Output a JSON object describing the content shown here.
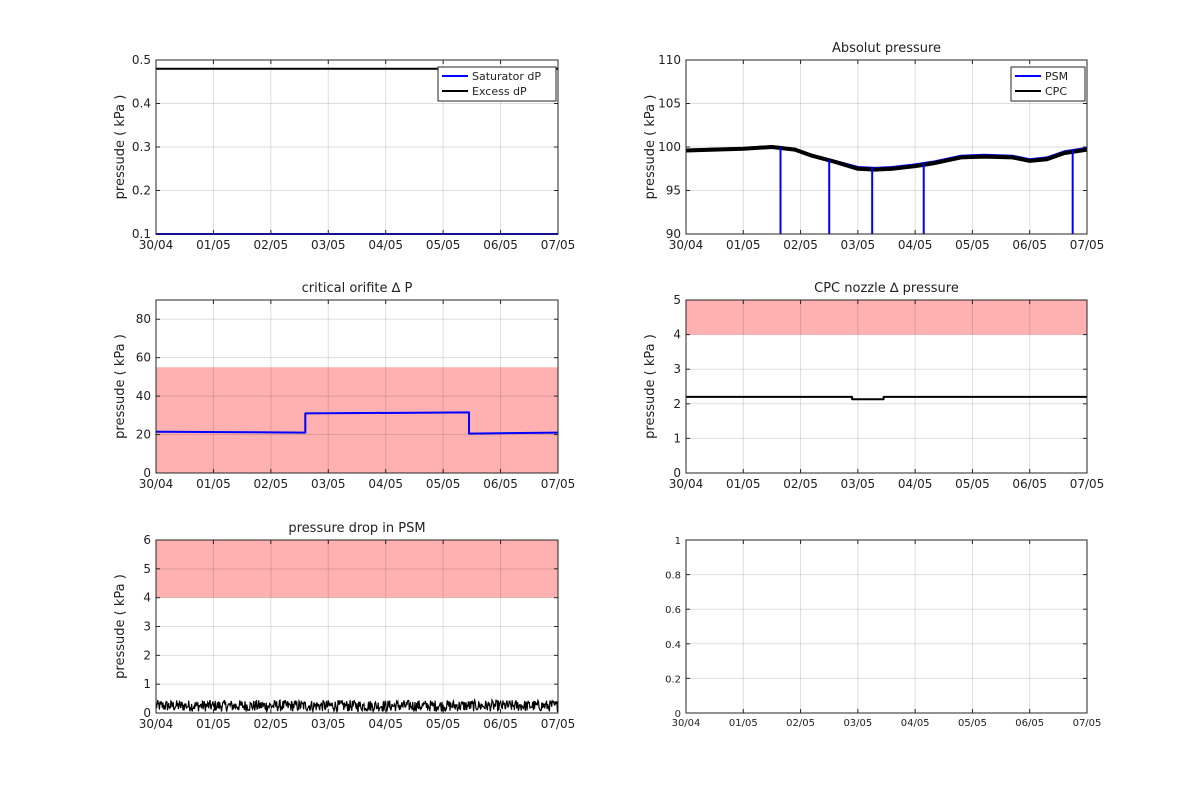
{
  "chart_data": [
    {
      "type": "line",
      "title": "",
      "ylabel": "pressude ( kPa )",
      "ylim": [
        0.1,
        0.5
      ],
      "yticks": [
        "0.1",
        "0.2",
        "0.3",
        "0.4",
        "0.5"
      ],
      "xticks": [
        "30/04",
        "01/05",
        "02/05",
        "03/05",
        "04/05",
        "05/05",
        "06/05",
        "07/05"
      ],
      "grid": true,
      "legend": "top-right",
      "series": [
        {
          "name": "Saturator dP",
          "color": "#0000ff",
          "x": [
            0,
            7
          ],
          "y": [
            0.1,
            0.1
          ]
        },
        {
          "name": "Excess dP",
          "color": "#000000",
          "x": [
            0,
            7
          ],
          "y": [
            0.48,
            0.48
          ]
        }
      ]
    },
    {
      "type": "line",
      "title": "Absolut pressure",
      "ylabel": "pressude ( kPa )",
      "ylim": [
        90,
        110
      ],
      "yticks": [
        "90",
        "95",
        "100",
        "105",
        "110"
      ],
      "xticks": [
        "30/04",
        "01/05",
        "02/05",
        "03/05",
        "04/05",
        "05/05",
        "06/05",
        "07/05"
      ],
      "grid": true,
      "legend": "top-right",
      "series": [
        {
          "name": "PSM",
          "color": "#0000ff",
          "x": [
            0,
            1,
            1.5,
            1.9,
            2.2,
            2.6,
            3.0,
            3.3,
            3.6,
            4.0,
            4.3,
            4.8,
            5.2,
            5.7,
            6.0,
            6.3,
            6.6,
            7.0
          ],
          "y": [
            99.7,
            99.9,
            100.1,
            99.8,
            99.1,
            98.4,
            97.7,
            97.6,
            97.7,
            98.0,
            98.3,
            99.0,
            99.1,
            99.0,
            98.6,
            98.8,
            99.5,
            99.9
          ]
        },
        {
          "name": "CPC",
          "color": "#000000",
          "x": [
            0,
            1,
            1.5,
            1.9,
            2.2,
            2.6,
            3.0,
            3.3,
            3.6,
            4.0,
            4.3,
            4.8,
            5.2,
            5.7,
            6.0,
            6.3,
            6.6,
            7.0
          ],
          "y": [
            99.6,
            99.8,
            100.0,
            99.7,
            99.0,
            98.3,
            97.5,
            97.4,
            97.5,
            97.8,
            98.1,
            98.8,
            98.9,
            98.8,
            98.4,
            98.6,
            99.3,
            99.7
          ]
        }
      ],
      "spikes": [
        {
          "x": 1.65,
          "y": 90
        },
        {
          "x": 2.5,
          "y": 90
        },
        {
          "x": 3.25,
          "y": 90
        },
        {
          "x": 4.15,
          "y": 90
        },
        {
          "x": 6.75,
          "y": 90
        }
      ]
    },
    {
      "type": "line",
      "title": "critical orifite ∆ P",
      "ylabel": "pressude ( kPa )",
      "ylim": [
        0,
        90
      ],
      "yticks": [
        "0",
        "20",
        "40",
        "60",
        "80"
      ],
      "ytick_values": [
        0,
        20,
        40,
        60,
        80
      ],
      "xticks": [
        "30/04",
        "01/05",
        "02/05",
        "03/05",
        "04/05",
        "05/05",
        "06/05",
        "07/05"
      ],
      "grid": true,
      "band": [
        0,
        55
      ],
      "series": [
        {
          "name": "",
          "color": "#0000ff",
          "x": [
            0,
            2.6,
            2.6,
            5.45,
            5.45,
            7.0
          ],
          "y": [
            21.5,
            21,
            31,
            31.5,
            20.5,
            21
          ]
        }
      ]
    },
    {
      "type": "line",
      "title": "CPC nozzle ∆ pressure",
      "ylabel": "pressude ( kPa )",
      "ylim": [
        0,
        5
      ],
      "yticks": [
        "0",
        "1",
        "2",
        "3",
        "4",
        "5"
      ],
      "xticks": [
        "30/04",
        "01/05",
        "02/05",
        "03/05",
        "04/05",
        "05/05",
        "06/05",
        "07/05"
      ],
      "grid": true,
      "band": [
        4,
        5
      ],
      "series": [
        {
          "name": "",
          "color": "#000000",
          "x": [
            0,
            2.9,
            2.9,
            3.45,
            3.45,
            7.0
          ],
          "y": [
            2.2,
            2.2,
            2.13,
            2.13,
            2.2,
            2.2
          ]
        }
      ]
    },
    {
      "type": "line",
      "title": "pressure drop in PSM",
      "ylabel": "pressude ( kPa )",
      "ylim": [
        0,
        6
      ],
      "yticks": [
        "0",
        "1",
        "2",
        "3",
        "4",
        "5",
        "6"
      ],
      "xticks": [
        "30/04",
        "01/05",
        "02/05",
        "03/05",
        "04/05",
        "05/05",
        "06/05",
        "07/05"
      ],
      "grid": true,
      "band": [
        4,
        6
      ],
      "series": [
        {
          "name": "",
          "color": "#000000",
          "noise_range": [
            0.05,
            0.45
          ],
          "x": [
            0,
            7
          ]
        }
      ]
    },
    {
      "type": "line",
      "title": "",
      "ylabel": "",
      "ylim": [
        0,
        1
      ],
      "yticks": [
        "0",
        "0.2",
        "0.4",
        "0.6",
        "0.8",
        "1"
      ],
      "ytick_values": [
        0,
        0.2,
        0.4,
        0.6,
        0.8,
        1
      ],
      "xticks": [
        "30/04",
        "01/05",
        "02/05",
        "03/05",
        "04/05",
        "05/05",
        "06/05",
        "07/05"
      ],
      "grid": true,
      "series": []
    }
  ]
}
